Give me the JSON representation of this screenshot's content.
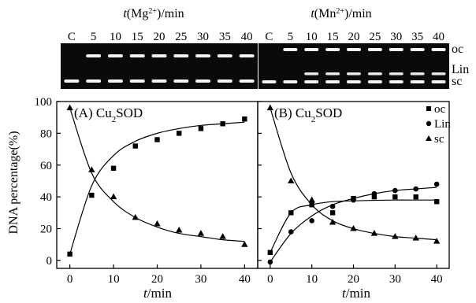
{
  "gels": [
    {
      "axis_var": "t",
      "ion_base": "Mg",
      "ion_charge": "2+",
      "unit": "/min",
      "lanes": [
        "C",
        "5",
        "10",
        "15",
        "20",
        "25",
        "30",
        "35",
        "40"
      ]
    },
    {
      "axis_var": "t",
      "ion_base": "Mn",
      "ion_charge": "2+",
      "unit": "/min",
      "lanes": [
        "C",
        "5",
        "10",
        "15",
        "20",
        "25",
        "30",
        "35",
        "40"
      ]
    }
  ],
  "band_labels": [
    "oc",
    "Lin",
    "sc"
  ],
  "chart_data": [
    {
      "type": "scatter",
      "title_prefix": "(A)",
      "title_base": "Cu",
      "title_sub": "2",
      "title_suffix": "SOD",
      "xlabel_var": "t",
      "xlabel_unit": "/min",
      "ylabel": "DNA percentage(%)",
      "xlim": [
        -3,
        43
      ],
      "ylim": [
        -5,
        100
      ],
      "xticks": [
        0,
        10,
        20,
        30,
        40
      ],
      "yticks": [
        0,
        20,
        40,
        60,
        80,
        100
      ],
      "grid": false,
      "series": [
        {
          "marker": "square",
          "x": [
            0,
            5,
            10,
            15,
            20,
            25,
            30,
            35,
            40
          ],
          "values": [
            4,
            41,
            58,
            72,
            76,
            80,
            83,
            86,
            89
          ],
          "fit": [
            4,
            47,
            66,
            75,
            80,
            83,
            85,
            86,
            87
          ]
        },
        {
          "marker": "triangle",
          "x": [
            0,
            5,
            10,
            15,
            20,
            25,
            30,
            35,
            40
          ],
          "values": [
            96,
            57,
            40,
            27,
            23,
            19,
            17,
            15,
            10
          ],
          "fit": [
            96,
            55,
            37,
            27,
            21,
            17,
            15,
            13,
            12
          ]
        }
      ]
    },
    {
      "type": "scatter",
      "title_prefix": "(B)",
      "title_base": "Cu",
      "title_sub": "2",
      "title_suffix": "SOD",
      "xlabel_var": "t",
      "xlabel_unit": "/min",
      "ylabel": "",
      "xlim": [
        -3,
        43
      ],
      "ylim": [
        -5,
        100
      ],
      "xticks": [
        0,
        10,
        20,
        30,
        40
      ],
      "yticks": [],
      "grid": false,
      "legend": [
        "oc",
        "Lin",
        "sc"
      ],
      "legend_position": "top-right",
      "series": [
        {
          "name": "oc",
          "marker": "square",
          "x": [
            0,
            5,
            10,
            15,
            20,
            25,
            30,
            35,
            40
          ],
          "values": [
            5,
            30,
            35,
            30,
            39,
            40,
            40,
            40,
            37
          ],
          "fit": [
            5,
            30,
            35,
            37,
            37.5,
            37.8,
            38,
            38,
            38
          ]
        },
        {
          "name": "Lin",
          "marker": "circle",
          "x": [
            0,
            5,
            10,
            15,
            20,
            25,
            30,
            35,
            40
          ],
          "values": [
            -1,
            18,
            25,
            34,
            38,
            42,
            44,
            45,
            48
          ],
          "fit": [
            -1,
            17,
            28,
            35,
            39,
            42,
            44,
            45,
            46
          ]
        },
        {
          "name": "sc",
          "marker": "triangle",
          "x": [
            0,
            5,
            10,
            15,
            20,
            25,
            30,
            35,
            40
          ],
          "values": [
            96,
            50,
            38,
            24,
            20,
            17,
            15,
            14,
            12
          ],
          "fit": [
            96,
            55,
            35,
            25,
            20,
            17,
            15,
            14,
            13
          ]
        }
      ]
    }
  ]
}
